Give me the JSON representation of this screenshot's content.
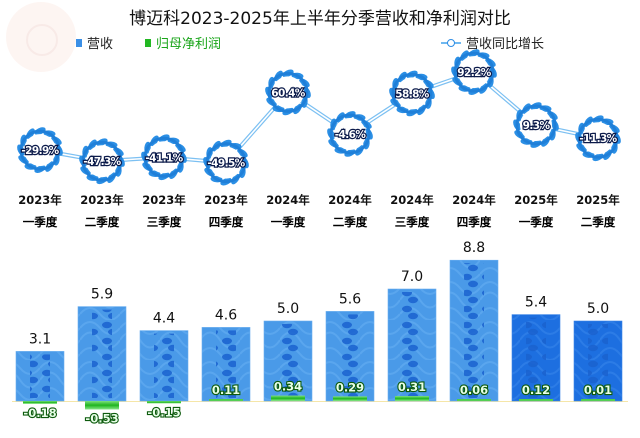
{
  "chart_data": {
    "type": "bar",
    "title": "博迈科2023-2025年上半年分季营收和净利润对比",
    "legend": [
      {
        "name": "营收",
        "color": "#3a8fe6",
        "marker": "square"
      },
      {
        "name": "归母净利润",
        "color": "#22b822",
        "marker": "square"
      },
      {
        "name": "营收同比增长",
        "color": "#2f8de4",
        "marker": "line-circle"
      }
    ],
    "categories": [
      {
        "year": "2023年",
        "quarter": "一季度"
      },
      {
        "year": "2023年",
        "quarter": "二季度"
      },
      {
        "year": "2023年",
        "quarter": "三季度"
      },
      {
        "year": "2023年",
        "quarter": "四季度"
      },
      {
        "year": "2024年",
        "quarter": "一季度"
      },
      {
        "year": "2024年",
        "quarter": "二季度"
      },
      {
        "year": "2024年",
        "quarter": "三季度"
      },
      {
        "year": "2024年",
        "quarter": "四季度"
      },
      {
        "year": "2025年",
        "quarter": "一季度"
      },
      {
        "year": "2025年",
        "quarter": "二季度"
      }
    ],
    "series": [
      {
        "name": "营收",
        "type": "bar",
        "values": [
          3.1,
          5.9,
          4.4,
          4.6,
          5.0,
          5.6,
          7.0,
          8.8,
          5.4,
          5.0
        ],
        "labels": [
          "3.1",
          "5.9",
          "4.4",
          "4.6",
          "5.0",
          "5.6",
          "7.0",
          "8.8",
          "5.4",
          "5.0"
        ]
      },
      {
        "name": "归母净利润",
        "type": "bar",
        "values": [
          -0.18,
          -0.53,
          -0.15,
          0.11,
          0.34,
          0.29,
          0.31,
          0.06,
          0.12,
          0.01
        ],
        "labels": [
          "-0.18",
          "-0.53",
          "-0.15",
          "0.11",
          "0.34",
          "0.29",
          "0.31",
          "0.06",
          "0.12",
          "0.01"
        ]
      },
      {
        "name": "营收同比增长",
        "type": "line",
        "unit": "%",
        "values": [
          -29.9,
          -47.3,
          -41.1,
          -49.5,
          60.4,
          -4.6,
          58.8,
          92.2,
          9.3,
          -11.3
        ],
        "labels": [
          "-29.9%",
          "-47.3%",
          "-41.1%",
          "-49.5%",
          "60.4%",
          "-4.6%",
          "58.8%",
          "92.2%",
          "9.3%",
          "-11.3%"
        ]
      }
    ],
    "xlabel": "",
    "ylabel": "",
    "grid": false,
    "legend_position": "top"
  }
}
